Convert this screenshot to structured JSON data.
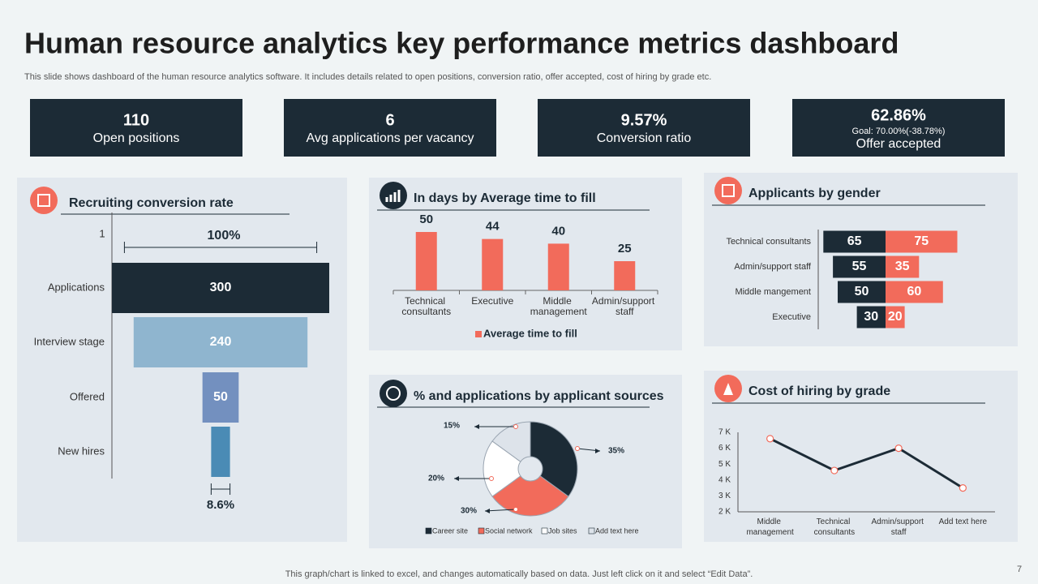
{
  "title": "Human resource analytics key performance metrics dashboard",
  "subtitle": "This slide shows dashboard of the human resource analytics software. It includes details related to open positions, conversion ratio, offer accepted, cost of hiring by grade etc.",
  "kpis": [
    {
      "value": "110",
      "label": "Open positions"
    },
    {
      "value": "6",
      "label": "Avg applications per vacancy"
    },
    {
      "value": "9.57%",
      "label": "Conversion ratio"
    },
    {
      "value": "62.86%",
      "goal": "Goal: 70.00%(-38.78%)",
      "label": "Offer accepted"
    }
  ],
  "chart_data": [
    {
      "type": "funnel",
      "title": "Recruiting conversion rate",
      "categories": [
        "Applications",
        "Interview stage",
        "Offered",
        "New hires"
      ],
      "values": [
        300,
        240,
        50,
        26
      ],
      "value_labels": [
        "300",
        "240",
        "50",
        null
      ],
      "colors": [
        "#1c2b36",
        "#8fb5cf",
        "#7390bf",
        "#4a8bb5"
      ],
      "annotations": [
        "1",
        "100%",
        "8.6%"
      ]
    },
    {
      "type": "bar",
      "title": "In days by Average time to fill",
      "categories": [
        "Technical consultants",
        "Executive",
        "Middle management",
        "Admin/support staff"
      ],
      "series": [
        {
          "name": "Average time to fill",
          "color": "#f26b5b",
          "values": [
            50,
            44,
            40,
            25
          ]
        }
      ],
      "ylim": [
        0,
        50
      ]
    },
    {
      "type": "butterfly",
      "title": "Applicants by gender",
      "categories": [
        "Technical consultants",
        "Admin/support staff",
        "Middle mangement",
        "Executive"
      ],
      "series": [
        {
          "color": "#1c2b36",
          "values": [
            65,
            55,
            50,
            30
          ]
        },
        {
          "color": "#f26b5b",
          "values": [
            75,
            35,
            60,
            20
          ]
        }
      ]
    },
    {
      "type": "donut",
      "title": "% and applications by applicant sources",
      "labels": [
        "Career site",
        "Social network",
        "Job sites",
        "Add text here"
      ],
      "values": [
        35,
        30,
        20,
        15
      ],
      "value_labels": [
        "35%",
        "30%",
        "20%",
        "15%"
      ],
      "colors": [
        "#1c2b36",
        "#f26b5b",
        "#ffffff",
        "#dde3ea"
      ]
    },
    {
      "type": "line",
      "title": "Cost of hiring by grade",
      "categories": [
        "Middle management",
        "Technical consultants",
        "Admin/support staff",
        "Add text here"
      ],
      "values": [
        6.6,
        4.6,
        6,
        3.5
      ],
      "color": "#1c2b36",
      "marker_color": "#f26b5b",
      "ylim": [
        2,
        7
      ],
      "yticks": [
        {
          "value": 2,
          "label": "2 K"
        },
        {
          "value": 3,
          "label": "3 K"
        },
        {
          "value": 4,
          "label": "4 K"
        },
        {
          "value": 5,
          "label": "5 K"
        },
        {
          "value": 6,
          "label": "6 K"
        },
        {
          "value": 7,
          "label": "7 K"
        }
      ]
    }
  ],
  "footer": "This graph/chart is linked to excel,  and changes automatically based on data. Just left click on it and select “Edit Data”.",
  "page_number": "7"
}
